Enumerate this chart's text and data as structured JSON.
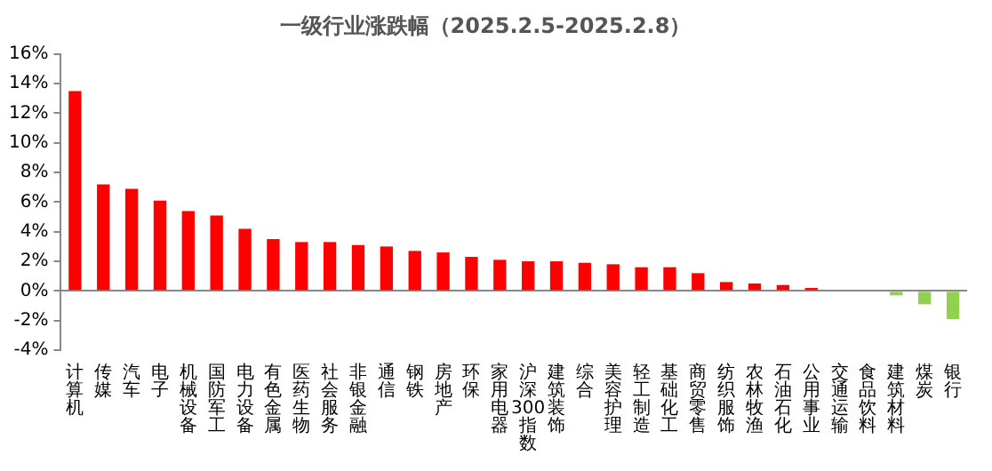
{
  "chart_data": {
    "type": "bar",
    "title": "一级行业涨跌幅（2025.2.5-2025.2.8）",
    "categories": [
      "计算机",
      "传媒",
      "汽车",
      "电子",
      "机械设备",
      "国防军工",
      "电力设备",
      "有色金属",
      "医药生物",
      "社会服务",
      "非银金融",
      "通信",
      "钢铁",
      "房地产",
      "环保",
      "家用电器",
      "沪深300指数",
      "建筑装饰",
      "综合",
      "美容护理",
      "轻工制造",
      "基础化工",
      "商贸零售",
      "纺织服饰",
      "农林牧渔",
      "石油石化",
      "公用事业",
      "交通运输",
      "食品饮料",
      "建筑材料",
      "煤炭",
      "银行"
    ],
    "values": [
      13.5,
      7.2,
      6.9,
      6.1,
      5.4,
      5.1,
      4.2,
      3.5,
      3.3,
      3.3,
      3.1,
      3.0,
      2.7,
      2.6,
      2.3,
      2.1,
      2.0,
      2.0,
      1.9,
      1.8,
      1.6,
      1.6,
      1.2,
      0.6,
      0.5,
      0.4,
      0.2,
      null,
      0.0,
      -0.3,
      -0.9,
      -1.9
    ],
    "colors": [
      "#ff0000",
      "#ff0000",
      "#ff0000",
      "#ff0000",
      "#ff0000",
      "#ff0000",
      "#ff0000",
      "#ff0000",
      "#ff0000",
      "#ff0000",
      "#ff0000",
      "#ff0000",
      "#ff0000",
      "#ff0000",
      "#ff0000",
      "#ff0000",
      "#ff0000",
      "#ff0000",
      "#ff0000",
      "#ff0000",
      "#ff0000",
      "#ff0000",
      "#ff0000",
      "#ff0000",
      "#ff0000",
      "#ff0000",
      "#ff0000",
      "#ff0000",
      "#ff0000",
      "#92d050",
      "#92d050",
      "#92d050"
    ],
    "ylim": [
      -4,
      16
    ],
    "yticks": [
      {
        "value": -4,
        "label": "-4%"
      },
      {
        "value": -2,
        "label": "-2%"
      },
      {
        "value": 0,
        "label": "0%"
      },
      {
        "value": 2,
        "label": "2%"
      },
      {
        "value": 4,
        "label": "4%"
      },
      {
        "value": 6,
        "label": "6%"
      },
      {
        "value": 8,
        "label": "8%"
      },
      {
        "value": 10,
        "label": "10%"
      },
      {
        "value": 12,
        "label": "12%"
      },
      {
        "value": 14,
        "label": "14%"
      },
      {
        "value": 16,
        "label": "16%"
      }
    ]
  }
}
